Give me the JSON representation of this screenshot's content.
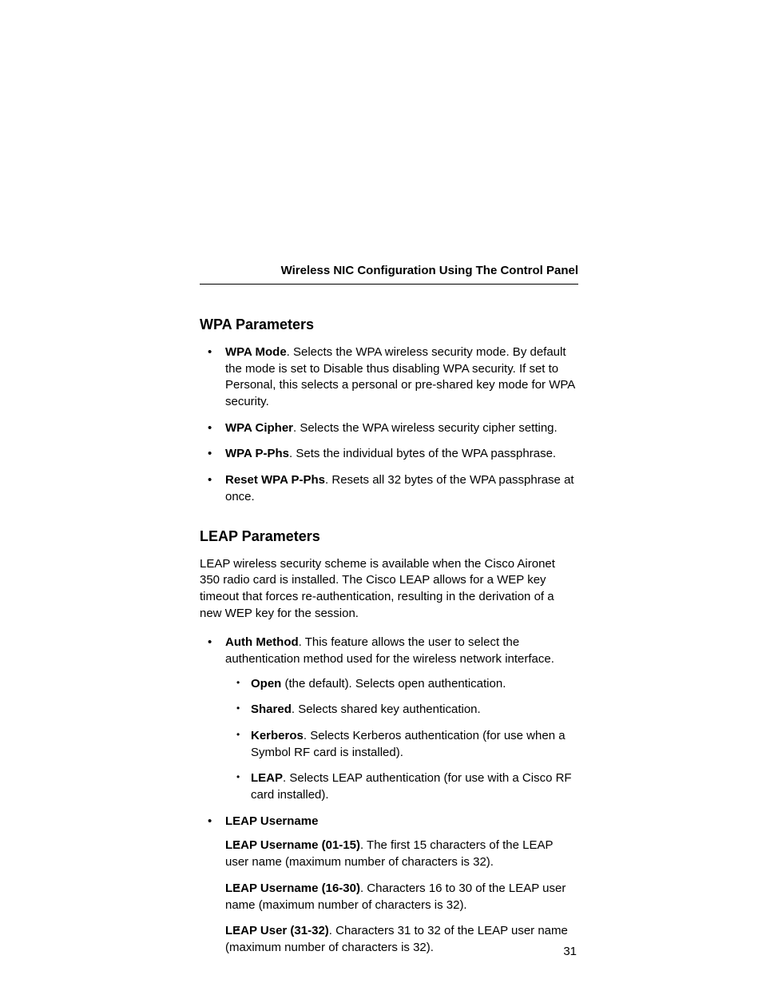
{
  "header": "Wireless NIC Configuration Using The Control Panel",
  "pageNumber": "31",
  "wpa": {
    "heading": "WPA Parameters",
    "items": [
      {
        "title": "WPA Mode",
        "body": ". Selects the WPA wireless security mode. By default the mode is set to Disable thus disabling WPA security. If set to Personal, this selects a personal or pre-shared key mode for WPA security."
      },
      {
        "title": "WPA Cipher",
        "body": ". Selects the WPA wireless security cipher setting."
      },
      {
        "title": "WPA P-Phs",
        "body": ". Sets the individual bytes of the WPA passphrase."
      },
      {
        "title": "Reset WPA P-Phs",
        "body": ". Resets all 32 bytes of the WPA passphrase at once."
      }
    ]
  },
  "leap": {
    "heading": "LEAP Parameters",
    "intro": "LEAP wireless security scheme is available when the Cisco Aironet 350 radio card is installed. The Cisco LEAP allows for a WEP key timeout that forces re-authentication, resulting in the derivation of a new WEP key for the session.",
    "auth": {
      "title": "Auth Method",
      "body": ". This feature allows the user to select the authentication method used for the wireless network interface.",
      "options": [
        {
          "title": "Open",
          "body": " (the default). Selects open authentication."
        },
        {
          "title": "Shared",
          "body": ". Selects shared key authentication."
        },
        {
          "title": "Kerberos",
          "body": ". Selects Kerberos authentication (for use when a Symbol RF card is installed)."
        },
        {
          "title": "LEAP",
          "body": ". Selects LEAP authentication (for use with a Cisco RF card installed)."
        }
      ]
    },
    "username": {
      "title": "LEAP Username",
      "items": [
        {
          "title": "LEAP Username (01-15)",
          "body": ". The first 15 characters of the LEAP user name (maximum number of characters is 32)."
        },
        {
          "title": "LEAP Username (16-30)",
          "body": ". Characters 16 to 30 of the LEAP user name (maximum number of characters is 32)."
        },
        {
          "title": "LEAP User (31-32)",
          "body": ". Characters 31 to 32 of the LEAP user name (maximum number of characters is 32)."
        }
      ]
    }
  }
}
